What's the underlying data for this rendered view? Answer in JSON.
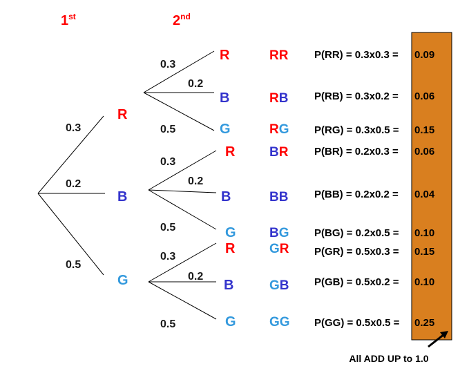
{
  "headers": {
    "first": {
      "text": "1",
      "sup": "st"
    },
    "second": {
      "text": "2",
      "sup": "nd"
    }
  },
  "first_draw": [
    {
      "prob": "0.3",
      "node": "R"
    },
    {
      "prob": "0.2",
      "node": "B"
    },
    {
      "prob": "0.5",
      "node": "G"
    }
  ],
  "second_draw": [
    {
      "parent": "R",
      "branches": [
        {
          "prob": "0.3",
          "node": "R",
          "outcome": [
            "R",
            "R"
          ],
          "expr": "P(RR) = 0.3x0.3 =",
          "result": "0.09"
        },
        {
          "prob": "0.2",
          "node": "B",
          "outcome": [
            "R",
            "B"
          ],
          "expr": "P(RB) = 0.3x0.2 =",
          "result": "0.06"
        },
        {
          "prob": "0.5",
          "node": "G",
          "outcome": [
            "R",
            "G"
          ],
          "expr": "P(RG) = 0.3x0.5 =",
          "result": "0.15"
        }
      ]
    },
    {
      "parent": "B",
      "branches": [
        {
          "prob": "0.3",
          "node": "R",
          "outcome": [
            "B",
            "R"
          ],
          "expr": "P(BR) = 0.2x0.3 =",
          "result": "0.06"
        },
        {
          "prob": "0.2",
          "node": "B",
          "outcome": [
            "B",
            "B"
          ],
          "expr": "P(BB) = 0.2x0.2 =",
          "result": "0.04"
        },
        {
          "prob": "0.5",
          "node": "G",
          "outcome": [
            "B",
            "G"
          ],
          "expr": "P(BG) = 0.2x0.5 =",
          "result": "0.10"
        }
      ]
    },
    {
      "parent": "G",
      "branches": [
        {
          "prob": "0.3",
          "node": "R",
          "outcome": [
            "G",
            "R"
          ],
          "expr": "P(GR) = 0.5x0.3 =",
          "result": "0.15"
        },
        {
          "prob": "0.2",
          "node": "B",
          "outcome": [
            "G",
            "B"
          ],
          "expr": "P(GB) = 0.5x0.2 =",
          "result": "0.10"
        },
        {
          "prob": "0.5",
          "node": "G",
          "outcome": [
            "G",
            "G"
          ],
          "expr": "P(GG) = 0.5x0.5 =",
          "result": "0.25"
        }
      ]
    }
  ],
  "summary_note": "All ADD UP to 1.0",
  "colors": {
    "R": "#ff0000",
    "B": "#3333cc",
    "G": "#3399dd",
    "header": "#ff0000",
    "result_box": "#d97f1f",
    "line": "#000000"
  }
}
